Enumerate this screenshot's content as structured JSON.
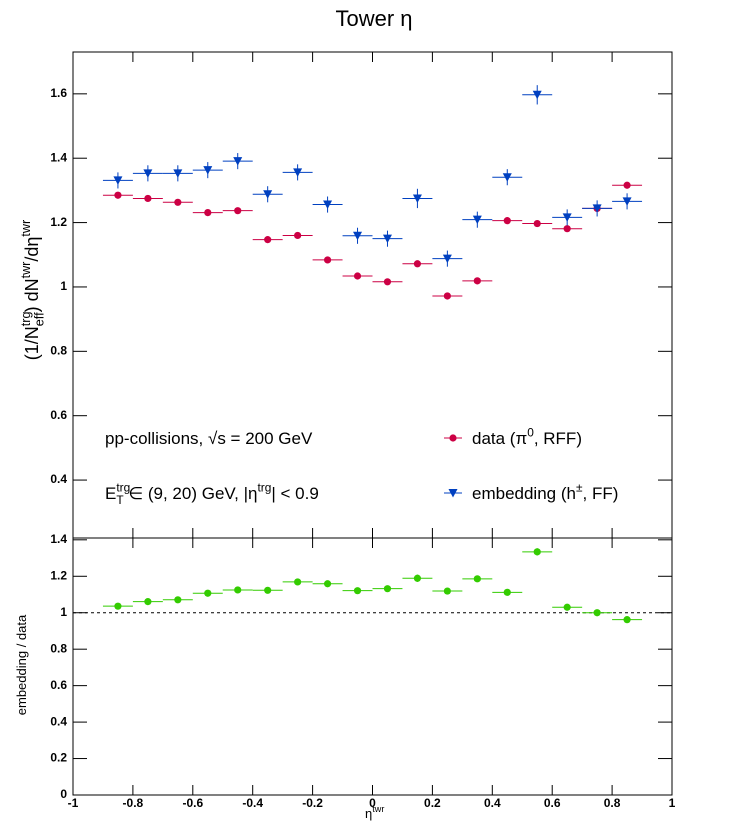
{
  "chart_data": [
    {
      "type": "errorbar",
      "title": "Tower η",
      "ylabel": [
        "(1/N",
        "trg",
        "eff",
        ") dN",
        "twr",
        "/dη",
        "twr"
      ],
      "annotations": [
        [
          "pp-collisions, √s = 200 GeV"
        ],
        [
          "E",
          "trg",
          "T",
          " ∈ (9, 20) GeV, |η",
          "trg",
          "| < 0.9"
        ]
      ],
      "x": [
        -0.85,
        -0.75,
        -0.65,
        -0.55,
        -0.45,
        -0.35,
        -0.25,
        -0.15,
        -0.05,
        0.05,
        0.15,
        0.25,
        0.35,
        0.45,
        0.55,
        0.65,
        0.75,
        0.85
      ],
      "xerr": 0.05,
      "xlim": [
        -1,
        1
      ],
      "xticks": [
        -1,
        -0.8,
        -0.6,
        -0.4,
        -0.2,
        0,
        0.2,
        0.4,
        0.6,
        0.8,
        1
      ],
      "ylim": [
        0.22,
        1.73
      ],
      "yticks": [
        0.4,
        0.6,
        0.8,
        1,
        1.2,
        1.4,
        1.6
      ],
      "series": [
        {
          "name": [
            "data (π",
            "0",
            ", RFF)"
          ],
          "color": "#cc0044",
          "marker": "circle",
          "values": [
            1.285,
            1.275,
            1.263,
            1.231,
            1.237,
            1.147,
            1.16,
            1.084,
            1.034,
            1.016,
            1.072,
            0.972,
            1.019,
            1.206,
            1.197,
            1.181,
            1.244,
            1.316
          ],
          "errors": [
            0.006,
            0.006,
            0.006,
            0.006,
            0.006,
            0.006,
            0.006,
            0.006,
            0.006,
            0.006,
            0.006,
            0.006,
            0.006,
            0.006,
            0.006,
            0.006,
            0.006,
            0.006
          ]
        },
        {
          "name": [
            "embedding (h",
            "±",
            ", FF)"
          ],
          "color": "#0040c0",
          "marker": "triangle-down",
          "values": [
            1.331,
            1.353,
            1.353,
            1.363,
            1.391,
            1.288,
            1.356,
            1.256,
            1.159,
            1.15,
            1.275,
            1.088,
            1.209,
            1.341,
            1.597,
            1.216,
            1.244,
            1.266
          ],
          "errors": [
            0.025,
            0.025,
            0.025,
            0.025,
            0.025,
            0.025,
            0.025,
            0.025,
            0.025,
            0.025,
            0.03,
            0.025,
            0.025,
            0.025,
            0.03,
            0.025,
            0.025,
            0.025
          ]
        }
      ]
    },
    {
      "type": "errorbar",
      "ylabel": "embedding / data",
      "xlabel": [
        "η",
        "twr"
      ],
      "x": [
        -0.85,
        -0.75,
        -0.65,
        -0.55,
        -0.45,
        -0.35,
        -0.25,
        -0.15,
        -0.05,
        0.05,
        0.15,
        0.25,
        0.35,
        0.45,
        0.55,
        0.65,
        0.75,
        0.85
      ],
      "xerr": 0.05,
      "xlim": [
        -1,
        1
      ],
      "xticks": [
        -1,
        -0.8,
        -0.6,
        -0.4,
        -0.2,
        0,
        0.2,
        0.4,
        0.6,
        0.8,
        1
      ],
      "ylim": [
        0,
        1.41
      ],
      "yticks": [
        0,
        0.2,
        0.4,
        0.6,
        0.8,
        1,
        1.2,
        1.4
      ],
      "hline": 1,
      "series": [
        {
          "color": "#33cc00",
          "marker": "circle",
          "values": [
            1.036,
            1.061,
            1.071,
            1.107,
            1.125,
            1.123,
            1.169,
            1.159,
            1.121,
            1.132,
            1.189,
            1.119,
            1.186,
            1.112,
            1.334,
            1.03,
            1.0,
            0.962
          ],
          "errors": [
            0.015,
            0.015,
            0.015,
            0.015,
            0.015,
            0.015,
            0.015,
            0.015,
            0.015,
            0.015,
            0.02,
            0.015,
            0.015,
            0.015,
            0.02,
            0.015,
            0.015,
            0.015
          ]
        }
      ]
    }
  ]
}
